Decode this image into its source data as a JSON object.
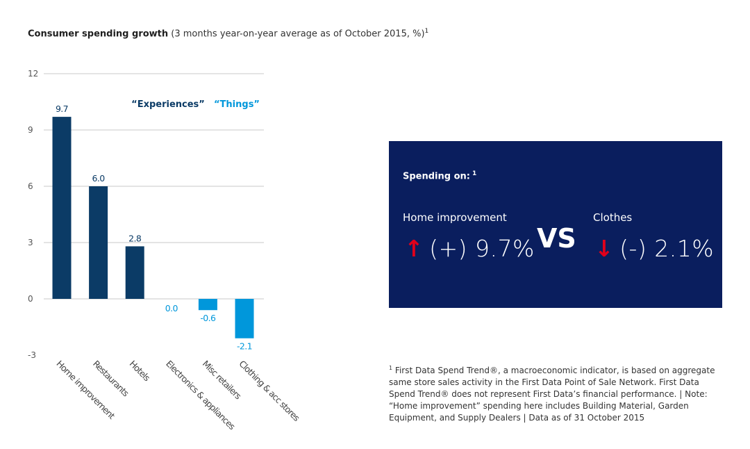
{
  "header": {
    "title_bold": "Consumer spending growth",
    "title_sub": "(3 months year-on-year average as of October 2015, %)",
    "title_sup": "1"
  },
  "chart_data": {
    "type": "bar",
    "categories": [
      "Home improvement",
      "Restaurants",
      "Hotels",
      "Electronics & appliances",
      "Misc retailers",
      "Clothing & acc stores"
    ],
    "values": [
      9.7,
      6.0,
      2.8,
      0.0,
      -0.6,
      -2.1
    ],
    "value_labels": [
      "9.7",
      "6.0",
      "2.8",
      "0.0",
      "-0.6",
      "-2.1"
    ],
    "groups": [
      "Experiences",
      "Experiences",
      "Experiences",
      "Things",
      "Things",
      "Things"
    ],
    "ylim": [
      -3,
      12
    ],
    "yticks": [
      12,
      9,
      6,
      3,
      0,
      -3
    ],
    "ytick_labels": [
      "12",
      "9",
      "6",
      "3",
      "0",
      "-3"
    ],
    "grid": true,
    "legend": [
      {
        "label": "“Experiences”",
        "color": "#0b3b66"
      },
      {
        "label": "“Things”",
        "color": "#0097db"
      }
    ],
    "colors": {
      "Experiences": "#0b3b66",
      "Things": "#0097db"
    }
  },
  "panel": {
    "header": "Spending on:",
    "header_sup": "1",
    "left_label": "Home improvement",
    "left_value": "(+) 9.7%",
    "left_arrow": "↑",
    "vs": "VS",
    "right_label": "Clothes",
    "right_value": "(-) 2.1%",
    "right_arrow": "↓",
    "bg_color": "#0a1e5e",
    "arrow_color": "#e0001b"
  },
  "footnote": {
    "sup": "1",
    "text": "First Data Spend Trend®, a macroeconomic indicator, is based on aggregate same store sales activity in the First Data Point of Sale Network. First Data Spend Trend® does not represent First Data’s financial performance. | Note: “Home improvement” spending here includes Building Material, Garden Equipment, and Supply Dealers | Data as of 31 October 2015"
  }
}
